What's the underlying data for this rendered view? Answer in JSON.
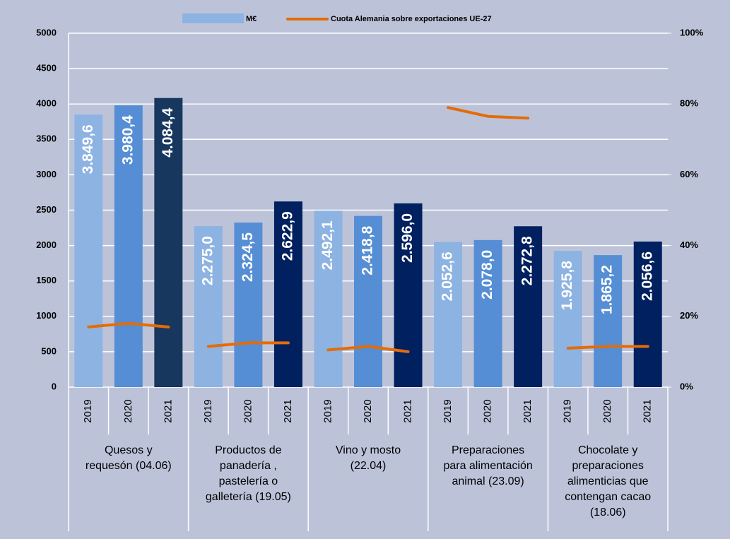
{
  "chart_data": {
    "type": "bar",
    "categories": [
      "2019",
      "2020",
      "2021",
      "2019",
      "2020",
      "2021",
      "2019",
      "2020",
      "2021",
      "2019",
      "2020",
      "2021",
      "2019",
      "2020",
      "2021"
    ],
    "groups": [
      [
        "Quesos y",
        "requesón (04.06)"
      ],
      [
        "Productos de",
        "panadería ,",
        "pastelería o",
        "galletería (19.05)"
      ],
      [
        "Vino y mosto",
        "(22.04)"
      ],
      [
        "Preparaciones",
        "para alimentación",
        "animal  (23.09)"
      ],
      [
        "Chocolate y",
        "preparaciones",
        "alimenticias que",
        "contengan cacao",
        "(18.06)"
      ]
    ],
    "series": [
      {
        "name": "M€",
        "type": "bar",
        "color": "#8db3e2",
        "values": [
          3849.6,
          3980.4,
          4084.4,
          2275.0,
          2324.5,
          2622.9,
          2492.1,
          2418.8,
          2596.0,
          2052.6,
          2078.0,
          2272.8,
          1925.8,
          1865.2,
          2056.6
        ],
        "value_labels": [
          "3.849,6",
          "3.980,4",
          "4.084,4",
          "2.275,0",
          "2.324,5",
          "2.622,9",
          "2.492,1",
          "2.418,8",
          "2.596,0",
          "2.052,6",
          "2.078,0",
          "2.272,8",
          "1.925,8",
          "1.865,2",
          "2.056,6"
        ],
        "colors": [
          "#8db3e2",
          "#558ed5",
          "#17375e",
          "#8db3e2",
          "#558ed5",
          "#002060",
          "#8db3e2",
          "#558ed5",
          "#002060",
          "#8db3e2",
          "#558ed5",
          "#002060",
          "#8db3e2",
          "#558ed5",
          "#002060"
        ]
      },
      {
        "name": "Cuota Alemania sobre exportaciones UE-27",
        "type": "line",
        "axis": "y2",
        "color": "#e36c09",
        "values": [
          17,
          18,
          17,
          11.5,
          12.5,
          12.5,
          10.5,
          11.5,
          10,
          79,
          76.5,
          76,
          11,
          11.5,
          11.5
        ]
      }
    ],
    "ylim": [
      0,
      5000
    ],
    "yticks": [
      0,
      500,
      1000,
      1500,
      2000,
      2500,
      3000,
      3500,
      4000,
      4500,
      5000
    ],
    "y2lim": [
      0,
      100
    ],
    "y2ticks": [
      {
        "value": 0,
        "label": "0%"
      },
      {
        "value": 20,
        "label": "20%"
      },
      {
        "value": 40,
        "label": "40%"
      },
      {
        "value": 60,
        "label": "60%"
      },
      {
        "value": 80,
        "label": "80%"
      },
      {
        "value": 100,
        "label": "100%"
      }
    ],
    "grid": true,
    "legend": "top"
  }
}
